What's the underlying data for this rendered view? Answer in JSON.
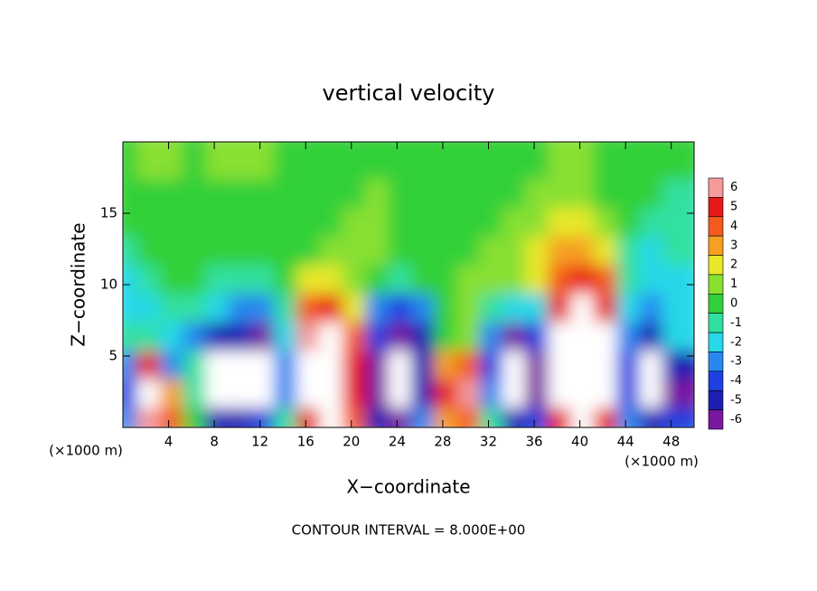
{
  "chart_data": {
    "type": "heatmap",
    "title": "vertical velocity",
    "x_label": "X−coordinate",
    "y_label": "Z−coordinate",
    "x_unit_label": "(×1000 m)",
    "annotation": "CONTOUR INTERVAL = 8.000E+00",
    "xlim": [
      0,
      50
    ],
    "ylim": [
      0,
      20
    ],
    "xticks": [
      4,
      8,
      12,
      16,
      20,
      24,
      28,
      32,
      36,
      40,
      44,
      48
    ],
    "yticks": [
      5,
      10,
      15
    ],
    "x": [
      1,
      3,
      5,
      7,
      9,
      11,
      13,
      15,
      17,
      19,
      21,
      23,
      25,
      27,
      29,
      31,
      33,
      35,
      37,
      39,
      41,
      43,
      45,
      47,
      49
    ],
    "y": [
      1,
      3,
      5,
      7,
      9,
      11,
      13,
      15,
      17,
      19
    ],
    "z": [
      [
        -3,
        6,
        4,
        0,
        -5,
        -5,
        -4,
        -1,
        5,
        7,
        4,
        -5,
        -6,
        -3,
        3,
        4,
        -1,
        -5,
        -4,
        5,
        7,
        5,
        -3,
        -5,
        -4
      ],
      [
        -4,
        8,
        3,
        -1,
        -8,
        -8,
        -8,
        -3,
        7,
        9,
        5,
        -6,
        -8,
        -5,
        5,
        6,
        -3,
        -8,
        -6,
        7,
        9,
        7,
        -4,
        -8,
        -6
      ],
      [
        -3,
        5,
        -3,
        -1,
        -8,
        -8,
        -8,
        -3,
        7,
        9,
        5,
        -6,
        -8,
        -5,
        3,
        4,
        -4,
        -8,
        -6,
        8,
        12,
        8,
        -4,
        -8,
        -5
      ],
      [
        -1,
        -1,
        -2,
        -3,
        -5,
        -5,
        -6,
        -2,
        6,
        8,
        4,
        -4,
        -6,
        -5,
        0,
        1,
        -3,
        -6,
        -4,
        7,
        10,
        7,
        -3,
        -5,
        -2
      ],
      [
        -2,
        -2,
        -1,
        -1,
        -2,
        -3,
        -3,
        -1,
        4,
        5,
        2,
        -3,
        -4,
        -3,
        0,
        1,
        -1,
        -2,
        -2,
        5,
        7,
        5,
        -2,
        -3,
        -2
      ],
      [
        -2,
        -1,
        0,
        0,
        -1,
        -1,
        -1,
        0,
        2,
        2,
        1,
        0,
        -1,
        0,
        0,
        1,
        1,
        1,
        2,
        4,
        5,
        4,
        -1,
        -2,
        -2
      ],
      [
        -1,
        0,
        0,
        0,
        0,
        0,
        0,
        0,
        0,
        1,
        1,
        1,
        0,
        0,
        0,
        0,
        1,
        1,
        2,
        3,
        3,
        2,
        -1,
        -2,
        -1
      ],
      [
        0,
        0,
        0,
        0,
        0,
        0,
        0,
        0,
        0,
        0,
        1,
        1,
        0,
        0,
        0,
        0,
        0,
        1,
        1,
        2,
        2,
        1,
        0,
        -1,
        -1
      ],
      [
        0,
        0,
        0,
        0,
        0,
        0,
        0,
        0,
        0,
        0,
        0,
        1,
        0,
        0,
        0,
        0,
        0,
        0,
        1,
        1,
        1,
        0,
        0,
        0,
        -1
      ],
      [
        0,
        1,
        1,
        0,
        1,
        1,
        1,
        0,
        0,
        0,
        0,
        0,
        0,
        0,
        0,
        0,
        0,
        0,
        0,
        1,
        1,
        0,
        0,
        0,
        0
      ]
    ],
    "levels": [
      6,
      5,
      4,
      3,
      2,
      1,
      0,
      -1,
      -2,
      -3,
      -4,
      -5,
      -6
    ],
    "level_colors": [
      "#f49a9a",
      "#e81818",
      "#f45a1e",
      "#f5a020",
      "#e8e82a",
      "#88e030",
      "#32d038",
      "#30e0a0",
      "#28d8e8",
      "#2888f0",
      "#1e40e0",
      "#1e1eb4",
      "#7818a0"
    ]
  }
}
